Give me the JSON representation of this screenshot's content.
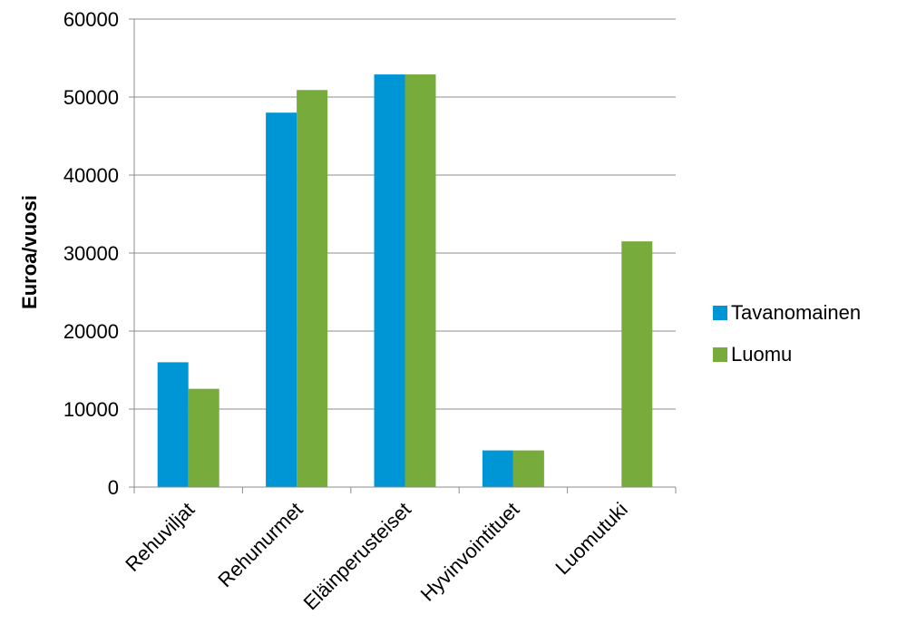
{
  "chart_data": {
    "type": "bar",
    "title": "",
    "xlabel": "",
    "ylabel": "Euroa/vuosi",
    "ylim": [
      0,
      60000
    ],
    "yticks": [
      0,
      10000,
      20000,
      30000,
      40000,
      50000,
      60000
    ],
    "grid": true,
    "legend_position": "right",
    "categories": [
      "Rehuviljat",
      "Rehunurmet",
      "Eläinperusteiset",
      "Hyvinvointituet",
      "Luomutuki"
    ],
    "series": [
      {
        "name": "Tavanomainen",
        "color": "#0096d6",
        "values": [
          16000,
          48000,
          52900,
          4700,
          0
        ]
      },
      {
        "name": "Luomu",
        "color": "#77ab3c",
        "values": [
          12600,
          50900,
          52900,
          4700,
          31500
        ]
      }
    ]
  }
}
